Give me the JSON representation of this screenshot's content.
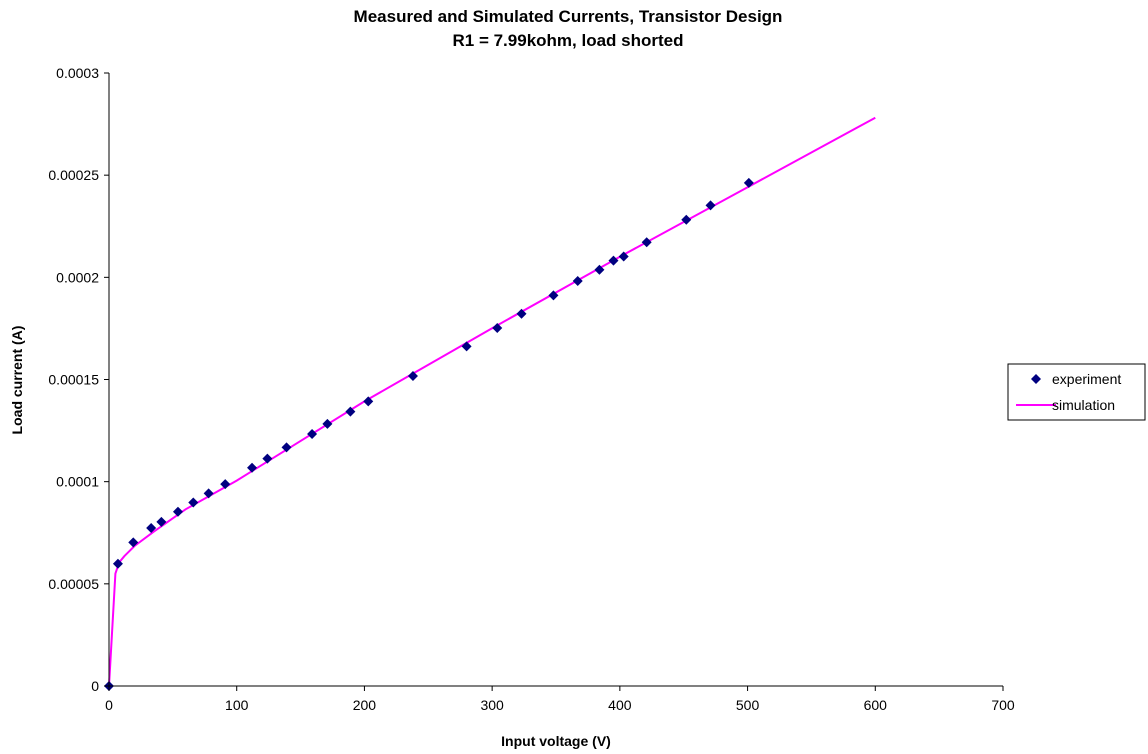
{
  "chart_data": {
    "type": "scatter",
    "title": "Measured and Simulated Currents, Transistor Design",
    "subtitle": "R1 = 7.99kohm, load shorted",
    "xlabel": "Input voltage (V)",
    "ylabel": "Load current (A)",
    "xlim": [
      0,
      700
    ],
    "ylim": [
      0,
      0.0003
    ],
    "x_ticks": [
      0,
      100,
      200,
      300,
      400,
      500,
      600,
      700
    ],
    "x_tick_labels": [
      "0",
      "100",
      "200",
      "300",
      "400",
      "500",
      "600",
      "700"
    ],
    "y_ticks": [
      0,
      5e-05,
      0.0001,
      0.00015,
      0.0002,
      0.00025,
      0.0003
    ],
    "y_tick_labels": [
      "0",
      "0.00005",
      "0.0001",
      "0.00015",
      "0.0002",
      "0.00025",
      "0.0003"
    ],
    "grid": false,
    "legend_position": "right",
    "series": [
      {
        "name": "experiment",
        "kind": "scatter",
        "marker": "diamond",
        "color": "#000080",
        "x": [
          0,
          7,
          19,
          33,
          41,
          54,
          66,
          78,
          91,
          112,
          124,
          139,
          159,
          171,
          189,
          203,
          238,
          280,
          304,
          323,
          348,
          367,
          384,
          395,
          403,
          421,
          452,
          471,
          501
        ],
        "y": [
          0,
          5.98e-05,
          7.03e-05,
          7.73e-05,
          8.03e-05,
          8.53e-05,
          8.98e-05,
          9.43e-05,
          9.88e-05,
          0.0001068,
          0.0001113,
          0.0001168,
          0.0001233,
          0.0001283,
          0.0001343,
          0.0001393,
          0.0001517,
          0.0001662,
          0.0001752,
          0.0001822,
          0.0001912,
          0.0001982,
          0.0002037,
          0.0002082,
          0.0002102,
          0.0002172,
          0.0002282,
          0.0002352,
          0.0002462
        ]
      },
      {
        "name": "simulation",
        "kind": "line",
        "color": "#ff00ff",
        "x": [
          0,
          5,
          8,
          12,
          20,
          35,
          60,
          100,
          200,
          300,
          400,
          500,
          600
        ],
        "y": [
          0,
          5.5e-05,
          6.05e-05,
          6.35e-05,
          6.85e-05,
          7.55e-05,
          8.65e-05,
          0.0001005,
          0.0001393,
          0.0001751,
          0.0002101,
          0.0002441,
          0.0002781
        ]
      }
    ]
  }
}
